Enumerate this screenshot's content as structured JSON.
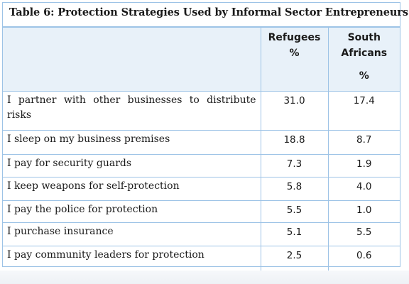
{
  "table": {
    "title": "Table 6: Protection Strategies Used by Informal Sector Entrepreneurs",
    "headers": {
      "refugees_line1": "Refugees",
      "refugees_line2": "%",
      "south_africans_line1": "South",
      "south_africans_line2": "Africans",
      "south_africans_line3": "%"
    },
    "rows": [
      {
        "strategy": "I partner with other businesses to distribute risks",
        "refugees": "31.0",
        "south_africans": "17.4"
      },
      {
        "strategy": "I sleep on my business premises",
        "refugees": "18.8",
        "south_africans": "8.7"
      },
      {
        "strategy": "I pay for security guards",
        "refugees": "7.3",
        "south_africans": "1.9"
      },
      {
        "strategy": "I keep weapons for self-protection",
        "refugees": "5.8",
        "south_africans": "4.0"
      },
      {
        "strategy": "I pay the police for protection",
        "refugees": "5.5",
        "south_africans": "1.0"
      },
      {
        "strategy": "I purchase insurance",
        "refugees": "5.1",
        "south_africans": "5.5"
      },
      {
        "strategy": "I pay community leaders for protection",
        "refugees": "2.5",
        "south_africans": "0.6"
      }
    ]
  },
  "colors": {
    "border": "#9dc3e6",
    "header_background": "#e8f1f9"
  }
}
